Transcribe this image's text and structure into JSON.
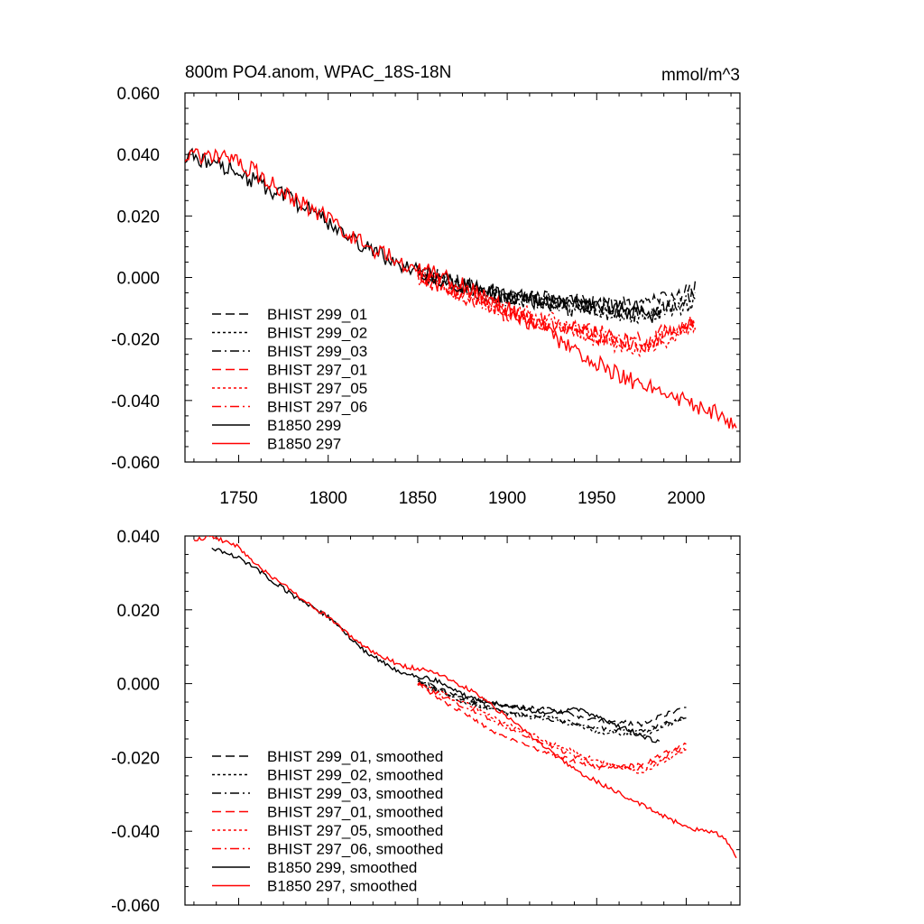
{
  "chart_data": [
    {
      "type": "line",
      "title": "800m PO4.anom, WPAC_18S-18N",
      "units": "mmol/m^3",
      "xlim": [
        1720,
        2030
      ],
      "ylim": [
        -0.06,
        0.06
      ],
      "x_ticks": [
        1750,
        1800,
        1850,
        1900,
        1950,
        2000
      ],
      "x_tick_labels": [
        "1750",
        "1800",
        "1850",
        "1900",
        "1950",
        "2000"
      ],
      "y_ticks": [
        -0.06,
        -0.04,
        -0.02,
        0.0,
        0.02,
        0.04,
        0.06
      ],
      "y_tick_labels": [
        "-0.060",
        "-0.040",
        "-0.020",
        "0.000",
        "0.020",
        "0.040",
        "0.060"
      ],
      "legend_position": "bottom-left",
      "series": [
        {
          "name": "BHIST 299_01",
          "color": "#000000",
          "dash": "dash",
          "x": [
            1850,
            1875,
            1900,
            1925,
            1950,
            1975,
            2005
          ],
          "y": [
            0.002,
            -0.002,
            -0.006,
            -0.007,
            -0.009,
            -0.009,
            -0.004
          ]
        },
        {
          "name": "BHIST 299_02",
          "color": "#000000",
          "dash": "dot",
          "x": [
            1850,
            1875,
            1900,
            1925,
            1950,
            1975,
            2005
          ],
          "y": [
            0.002,
            -0.003,
            -0.006,
            -0.008,
            -0.01,
            -0.013,
            -0.008
          ]
        },
        {
          "name": "BHIST 299_03",
          "color": "#000000",
          "dash": "dashdot",
          "x": [
            1850,
            1875,
            1900,
            1925,
            1950,
            1975,
            2005
          ],
          "y": [
            0.001,
            -0.003,
            -0.007,
            -0.009,
            -0.011,
            -0.012,
            -0.006
          ]
        },
        {
          "name": "BHIST 297_01",
          "color": "#ff0000",
          "dash": "dash",
          "x": [
            1850,
            1875,
            1900,
            1925,
            1950,
            1975,
            2005
          ],
          "y": [
            0.001,
            -0.006,
            -0.012,
            -0.016,
            -0.018,
            -0.021,
            -0.014
          ]
        },
        {
          "name": "BHIST 297_05",
          "color": "#ff0000",
          "dash": "dot",
          "x": [
            1850,
            1875,
            1900,
            1925,
            1950,
            1975,
            2005
          ],
          "y": [
            0.001,
            -0.004,
            -0.01,
            -0.014,
            -0.02,
            -0.024,
            -0.016
          ]
        },
        {
          "name": "BHIST 297_06",
          "color": "#ff0000",
          "dash": "dashdot",
          "x": [
            1850,
            1875,
            1900,
            1925,
            1950,
            1975,
            2005
          ],
          "y": [
            0.0,
            -0.005,
            -0.011,
            -0.015,
            -0.019,
            -0.022,
            -0.015
          ]
        },
        {
          "name": "B1850 299",
          "color": "#000000",
          "dash": "solid",
          "x": [
            1720,
            1740,
            1760,
            1780,
            1800,
            1820,
            1840,
            1860,
            1880,
            1900,
            1920,
            1940,
            1960,
            1985
          ],
          "y": [
            0.04,
            0.037,
            0.031,
            0.025,
            0.018,
            0.01,
            0.004,
            0.0,
            -0.003,
            -0.006,
            -0.008,
            -0.009,
            -0.01,
            -0.013
          ]
        },
        {
          "name": "B1850 297",
          "color": "#ff0000",
          "dash": "solid",
          "x": [
            1720,
            1745,
            1760,
            1780,
            1800,
            1820,
            1840,
            1860,
            1880,
            1900,
            1920,
            1940,
            1960,
            1980,
            2000,
            2020,
            2028
          ],
          "y": [
            0.04,
            0.039,
            0.034,
            0.026,
            0.019,
            0.011,
            0.005,
            0.001,
            -0.004,
            -0.01,
            -0.017,
            -0.025,
            -0.031,
            -0.036,
            -0.04,
            -0.045,
            -0.049
          ]
        }
      ]
    },
    {
      "type": "line",
      "xlim": [
        1720,
        2030
      ],
      "ylim": [
        -0.06,
        0.04
      ],
      "x_ticks": [
        1750,
        1800,
        1850,
        1900,
        1950,
        2000
      ],
      "y_ticks": [
        -0.06,
        -0.04,
        -0.02,
        0.0,
        0.02,
        0.04
      ],
      "y_tick_labels": [
        "-0.060",
        "-0.040",
        "-0.020",
        "0.000",
        "0.020",
        "0.040"
      ],
      "legend_position": "bottom-left",
      "series": [
        {
          "name": "BHIST 299_01, smoothed",
          "color": "#000000",
          "dash": "dash",
          "x": [
            1850,
            1875,
            1900,
            1925,
            1950,
            1975,
            2000
          ],
          "y": [
            0.001,
            -0.004,
            -0.006,
            -0.007,
            -0.01,
            -0.011,
            -0.006
          ]
        },
        {
          "name": "BHIST 299_02, smoothed",
          "color": "#000000",
          "dash": "dot",
          "x": [
            1850,
            1875,
            1900,
            1925,
            1950,
            1975,
            2000
          ],
          "y": [
            0.001,
            -0.005,
            -0.008,
            -0.009,
            -0.013,
            -0.014,
            -0.009
          ]
        },
        {
          "name": "BHIST 299_03, smoothed",
          "color": "#000000",
          "dash": "dashdot",
          "x": [
            1850,
            1875,
            1900,
            1925,
            1950,
            1975,
            2000
          ],
          "y": [
            0.0,
            -0.004,
            -0.008,
            -0.01,
            -0.012,
            -0.013,
            -0.009
          ]
        },
        {
          "name": "BHIST 297_01, smoothed",
          "color": "#ff0000",
          "dash": "dash",
          "x": [
            1850,
            1875,
            1900,
            1925,
            1950,
            1975,
            2000
          ],
          "y": [
            0.0,
            -0.008,
            -0.015,
            -0.019,
            -0.023,
            -0.022,
            -0.016
          ]
        },
        {
          "name": "BHIST 297_05, smoothed",
          "color": "#ff0000",
          "dash": "dot",
          "x": [
            1850,
            1875,
            1900,
            1925,
            1950,
            1975,
            2000
          ],
          "y": [
            0.0,
            -0.005,
            -0.011,
            -0.016,
            -0.021,
            -0.024,
            -0.018
          ]
        },
        {
          "name": "BHIST 297_06, smoothed",
          "color": "#ff0000",
          "dash": "dashdot",
          "x": [
            1850,
            1875,
            1900,
            1925,
            1950,
            1975,
            2000
          ],
          "y": [
            0.0,
            -0.006,
            -0.012,
            -0.017,
            -0.022,
            -0.023,
            -0.017
          ]
        },
        {
          "name": "B1850 299, smoothed",
          "color": "#000000",
          "dash": "solid",
          "x": [
            1735,
            1750,
            1760,
            1780,
            1800,
            1820,
            1830,
            1840,
            1860,
            1880,
            1900,
            1920,
            1940,
            1960,
            1985
          ],
          "y": [
            0.037,
            0.034,
            0.031,
            0.024,
            0.018,
            0.009,
            0.006,
            0.003,
            0.001,
            -0.004,
            -0.006,
            -0.008,
            -0.007,
            -0.011,
            -0.016
          ]
        },
        {
          "name": "B1850 297, smoothed",
          "color": "#ff0000",
          "dash": "solid",
          "x": [
            1725,
            1735,
            1750,
            1760,
            1780,
            1800,
            1820,
            1840,
            1860,
            1880,
            1900,
            1920,
            1940,
            1960,
            1980,
            2000,
            2010,
            2020,
            2028
          ],
          "y": [
            0.039,
            0.04,
            0.037,
            0.032,
            0.025,
            0.018,
            0.01,
            0.005,
            0.003,
            -0.002,
            -0.009,
            -0.017,
            -0.024,
            -0.029,
            -0.034,
            -0.039,
            -0.04,
            -0.041,
            -0.047
          ]
        }
      ]
    }
  ]
}
